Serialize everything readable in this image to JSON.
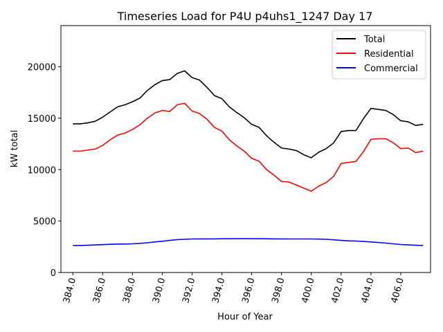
{
  "chart_data": {
    "type": "line",
    "title": "Timeseries Load for P4U p4uhs1_1247  Day 17",
    "xlabel": "Hour of Year",
    "ylabel": "kW total",
    "xlim": [
      383.2,
      408.0
    ],
    "ylim": [
      0,
      24000
    ],
    "x_ticks": [
      384,
      386,
      388,
      390,
      392,
      394,
      396,
      398,
      400,
      402,
      404,
      406
    ],
    "x_tick_labels": [
      "384.0",
      "386.0",
      "388.0",
      "390.0",
      "392.0",
      "394.0",
      "396.0",
      "398.0",
      "400.0",
      "402.0",
      "404.0",
      "406.0"
    ],
    "y_ticks": [
      0,
      5000,
      10000,
      15000,
      20000
    ],
    "y_tick_labels": [
      "0",
      "5000",
      "10000",
      "15000",
      "20000"
    ],
    "legend_position": "top-right",
    "x": [
      384.0,
      384.5,
      385.0,
      385.5,
      386.0,
      386.5,
      387.0,
      387.5,
      388.0,
      388.5,
      389.0,
      389.5,
      390.0,
      390.5,
      391.0,
      391.5,
      392.0,
      392.5,
      393.0,
      393.5,
      394.0,
      394.5,
      395.0,
      395.5,
      396.0,
      396.5,
      397.0,
      397.5,
      398.0,
      398.5,
      399.0,
      399.5,
      400.0,
      400.5,
      401.0,
      401.5,
      402.0,
      402.5,
      403.0,
      403.5,
      404.0,
      404.5,
      405.0,
      405.5,
      406.0,
      406.5,
      407.0,
      407.5
    ],
    "series": [
      {
        "name": "Total",
        "color": "#000000",
        "values": [
          14450,
          14450,
          14550,
          14700,
          15100,
          15600,
          16100,
          16300,
          16600,
          16950,
          17700,
          18250,
          18650,
          18750,
          19350,
          19600,
          18950,
          18700,
          18000,
          17200,
          16900,
          16100,
          15550,
          15050,
          14400,
          14100,
          13300,
          12650,
          12100,
          12000,
          11850,
          11450,
          11150,
          11700,
          12050,
          12600,
          13700,
          13800,
          13800,
          14950,
          15950,
          15850,
          15750,
          15350,
          14750,
          14650,
          14300,
          14400
        ]
      },
      {
        "name": "Residential",
        "color": "#ff0000",
        "values": [
          11800,
          11800,
          11900,
          12000,
          12350,
          12900,
          13350,
          13550,
          13900,
          14350,
          15000,
          15500,
          15750,
          15650,
          16300,
          16450,
          15700,
          15450,
          14900,
          14100,
          13750,
          12900,
          12300,
          11800,
          11100,
          10800,
          10000,
          9450,
          8850,
          8800,
          8500,
          8200,
          7900,
          8400,
          8750,
          9350,
          10600,
          10700,
          10800,
          11750,
          12950,
          13000,
          13000,
          12600,
          12050,
          12100,
          11650,
          11800
        ]
      },
      {
        "name": "Commercial",
        "color": "#0000ff",
        "values": [
          2620,
          2630,
          2650,
          2680,
          2710,
          2740,
          2760,
          2770,
          2790,
          2830,
          2890,
          2970,
          3040,
          3120,
          3190,
          3230,
          3260,
          3270,
          3270,
          3270,
          3280,
          3280,
          3290,
          3290,
          3290,
          3280,
          3280,
          3270,
          3270,
          3260,
          3260,
          3260,
          3260,
          3250,
          3230,
          3180,
          3120,
          3080,
          3060,
          3020,
          2970,
          2920,
          2860,
          2790,
          2720,
          2680,
          2650,
          2630
        ]
      }
    ]
  }
}
